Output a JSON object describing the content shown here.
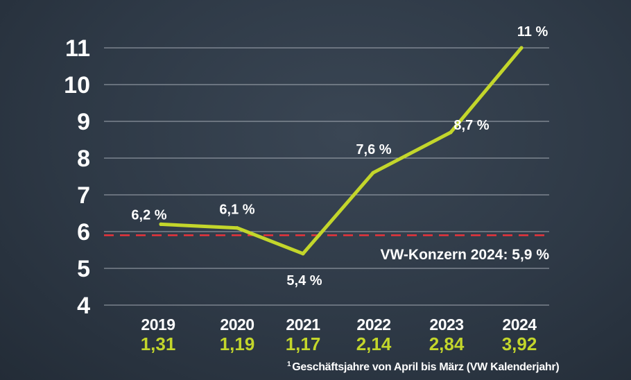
{
  "chart_data": {
    "type": "line",
    "categories": [
      "2019",
      "2020",
      "2021",
      "2022",
      "2023",
      "2024"
    ],
    "series": [
      {
        "values": [
          6.2,
          6.1,
          5.4,
          7.6,
          8.7,
          11.0
        ],
        "labels": [
          "6,2 %",
          "6,1 %",
          "5,4 %",
          "7,6 %",
          "8,7 %",
          "11 %"
        ]
      }
    ],
    "secondary_values": [
      "1,31",
      "1,19",
      "1,17",
      "2,14",
      "2,84",
      "3,92"
    ],
    "yticks": [
      "4",
      "5",
      "6",
      "7",
      "8",
      "9",
      "10",
      "11"
    ],
    "ylim": [
      4,
      11
    ],
    "reference_line": {
      "value": 5.9,
      "label": "VW-Konzern 2024: 5,9 %",
      "color": "#e8333a"
    },
    "grid": true,
    "colors": {
      "line": "#c3d62b",
      "secondary": "#c3d62b",
      "text": "#ffffff",
      "grid": "#c8ced6"
    }
  },
  "footnote": {
    "marker": "1",
    "text": "Geschäftsjahre von April bis März (VW Kalenderjahr)"
  }
}
